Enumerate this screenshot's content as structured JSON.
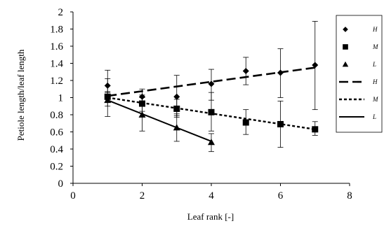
{
  "chart_data": {
    "type": "scatter",
    "title": "",
    "xlabel": "Leaf rank [-]",
    "ylabel": "Petiole length/leaf length",
    "xlim": [
      0,
      8
    ],
    "ylim": [
      0,
      2
    ],
    "x_ticks": [
      0,
      2,
      4,
      6,
      8
    ],
    "y_ticks": [
      0,
      0.2,
      0.4,
      0.6,
      0.8,
      1,
      1.2,
      1.4,
      1.6,
      1.8,
      2
    ],
    "y_tick_labels": [
      "0",
      "0.2",
      "0.4",
      "0.6",
      "0.8",
      "1",
      "1.2",
      "1.4",
      "1.6",
      "1.8",
      "2"
    ],
    "x_tick_labels": [
      "0",
      "2",
      "4",
      "6",
      "8"
    ],
    "grid": false,
    "legend_position": "right",
    "series": [
      {
        "name": "H",
        "marker": "diamond",
        "x": [
          1,
          2,
          3,
          4,
          5,
          6,
          7
        ],
        "y": [
          1.14,
          1.01,
          1.01,
          1.16,
          1.31,
          1.29,
          1.38
        ],
        "err_low": [
          1.06,
          0.9,
          0.79,
          0.97,
          1.15,
          1.0,
          0.86
        ],
        "err_high": [
          1.22,
          1.1,
          1.26,
          1.33,
          1.47,
          1.57,
          1.89
        ]
      },
      {
        "name": "M",
        "marker": "square",
        "x": [
          1,
          2,
          3,
          4,
          5,
          6,
          7
        ],
        "y": [
          1.01,
          0.93,
          0.87,
          0.83,
          0.71,
          0.69,
          0.63
        ],
        "err_low": [
          0.78,
          0.84,
          0.77,
          0.61,
          0.57,
          0.42,
          0.56
        ],
        "err_high": [
          1.32,
          1.03,
          0.98,
          1.06,
          0.86,
          0.96,
          0.72
        ]
      },
      {
        "name": "L",
        "marker": "triangle",
        "x": [
          1,
          2,
          3,
          4
        ],
        "y": [
          0.97,
          0.8,
          0.65,
          0.48
        ],
        "err_low": [
          0.9,
          0.61,
          0.49,
          0.37
        ],
        "err_high": [
          1.07,
          1.0,
          0.81,
          0.58
        ]
      }
    ],
    "fit_lines": [
      {
        "name": "H",
        "style": "long-dash",
        "x": [
          1,
          7
        ],
        "y": [
          1.02,
          1.35
        ]
      },
      {
        "name": "M",
        "style": "short-dash",
        "x": [
          1,
          7
        ],
        "y": [
          1.0,
          0.63
        ]
      },
      {
        "name": "L",
        "style": "solid",
        "x": [
          1,
          4
        ],
        "y": [
          0.97,
          0.49
        ]
      }
    ]
  }
}
